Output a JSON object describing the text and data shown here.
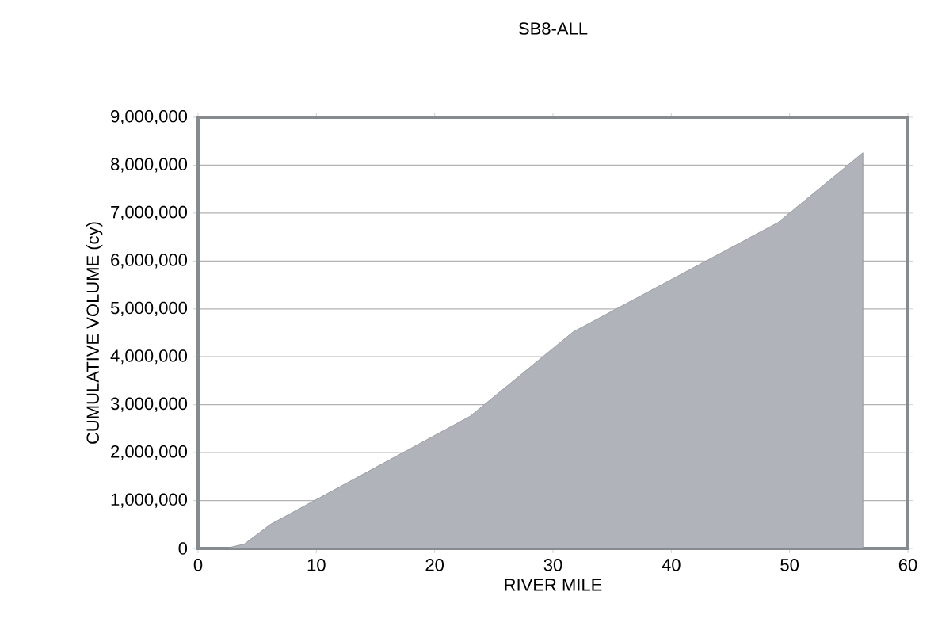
{
  "chart_data": {
    "type": "area",
    "title": "SB8-ALL",
    "xlabel": "RIVER MILE",
    "ylabel": "CUMULATIVE VOLUME (cy)",
    "x": [
      2.3,
      3.9,
      6.1,
      23,
      31.7,
      49,
      56.2,
      56.2
    ],
    "values": [
      0,
      90000,
      500000,
      2760000,
      4520000,
      6800000,
      8260000,
      0
    ],
    "color": "#b0b4ba",
    "xlim": [
      0,
      60
    ],
    "ylim": [
      0,
      9000000
    ],
    "xticks": [
      0,
      10,
      20,
      30,
      40,
      50,
      60
    ],
    "yticks": [
      {
        "value": 0,
        "label": "0"
      },
      {
        "value": 1000000,
        "label": "1,000,000"
      },
      {
        "value": 2000000,
        "label": "2,000,000"
      },
      {
        "value": 3000000,
        "label": "3,000,000"
      },
      {
        "value": 4000000,
        "label": "4,000,000"
      },
      {
        "value": 5000000,
        "label": "5,000,000"
      },
      {
        "value": 6000000,
        "label": "6,000,000"
      },
      {
        "value": 7000000,
        "label": "7,000,000"
      },
      {
        "value": 8000000,
        "label": "8,000,000"
      },
      {
        "value": 9000000,
        "label": "9,000,000"
      }
    ],
    "grid": "y"
  }
}
